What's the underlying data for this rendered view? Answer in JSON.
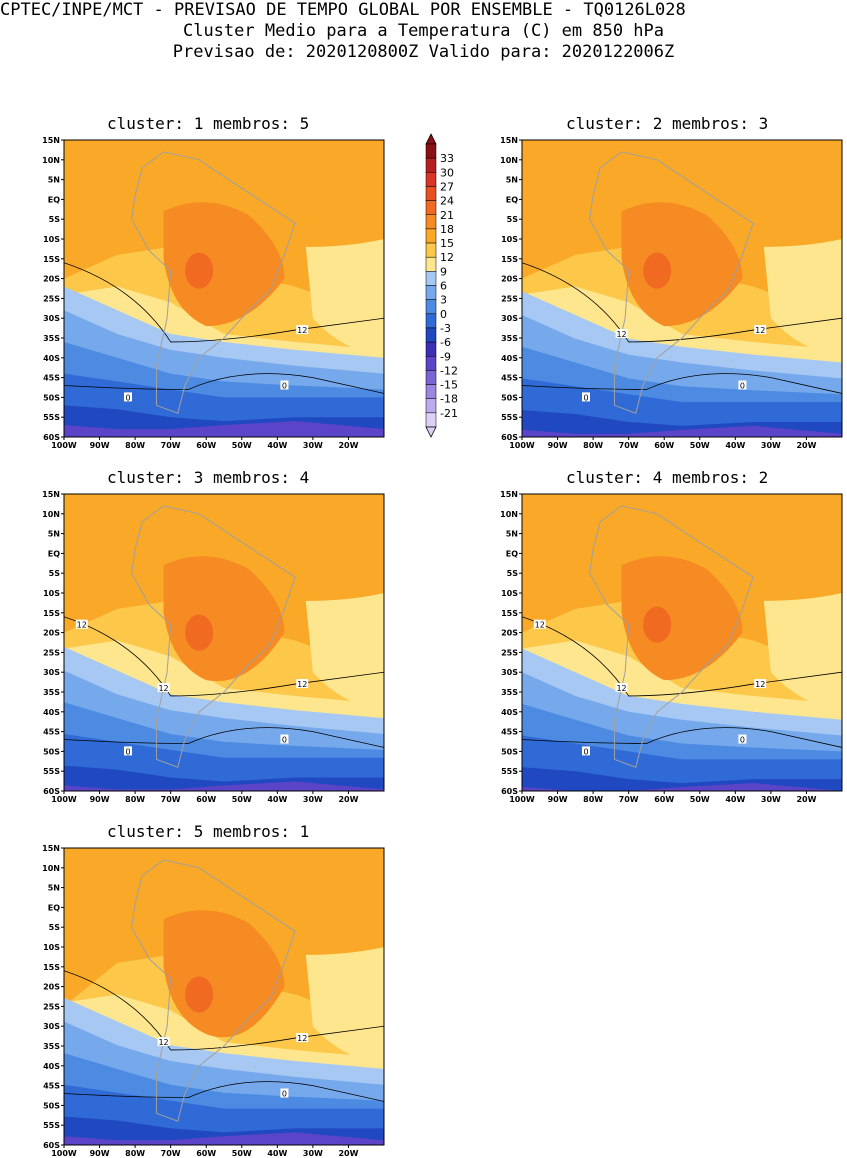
{
  "header": {
    "line1": "CPTEC/INPE/MCT - PREVISAO DE TEMPO GLOBAL POR ENSEMBLE - TQ0126L028",
    "line2": "Cluster Medio para a Temperatura (C) em 850 hPa",
    "line3": "Previsao de: 2020120800Z   Valido para: 2020122006Z"
  },
  "axes": {
    "lat_labels": [
      "15N",
      "10N",
      "5N",
      "EQ",
      "5S",
      "10S",
      "15S",
      "20S",
      "25S",
      "30S",
      "35S",
      "40S",
      "45S",
      "50S",
      "55S",
      "60S"
    ],
    "lon_labels": [
      "100W",
      "90W",
      "80W",
      "70W",
      "60W",
      "50W",
      "40W",
      "30W",
      "20W"
    ]
  },
  "legend": {
    "labels": [
      "33",
      "30",
      "27",
      "24",
      "21",
      "18",
      "15",
      "12",
      "9",
      "6",
      "3",
      "0",
      "-3",
      "-6",
      "-9",
      "-12",
      "-15",
      "-18",
      "-21"
    ],
    "colors": [
      "#8b0f14",
      "#b51f1f",
      "#d83524",
      "#e8501f",
      "#f06a22",
      "#f68a23",
      "#f9a927",
      "#fdc84a",
      "#fde68e",
      "#a6c8f2",
      "#76a9ec",
      "#4d8be2",
      "#2f6ad6",
      "#2048c0",
      "#3a2fb5",
      "#5c44c8",
      "#7b64d6",
      "#9b86e2",
      "#bcaaee",
      "#dcd0f7"
    ]
  },
  "panels": [
    {
      "title": "cluster: 1   membros: 5",
      "lab12": [
        "12"
      ],
      "lab0": [
        "0",
        "0"
      ]
    },
    {
      "title": "cluster: 2   membros: 3",
      "lab12": [
        "12",
        "12"
      ],
      "lab0": [
        "0",
        "0"
      ]
    },
    {
      "title": "cluster: 3   membros: 4",
      "lab12": [
        "12",
        "12",
        "12"
      ],
      "lab0": [
        "0",
        "0"
      ]
    },
    {
      "title": "cluster: 4   membros: 2",
      "lab12": [
        "12",
        "12",
        "12"
      ],
      "lab0": [
        "0",
        "0"
      ]
    },
    {
      "title": "cluster: 5   membros: 1",
      "lab12": [
        "12",
        "12"
      ],
      "lab0": [
        "0"
      ]
    }
  ]
}
